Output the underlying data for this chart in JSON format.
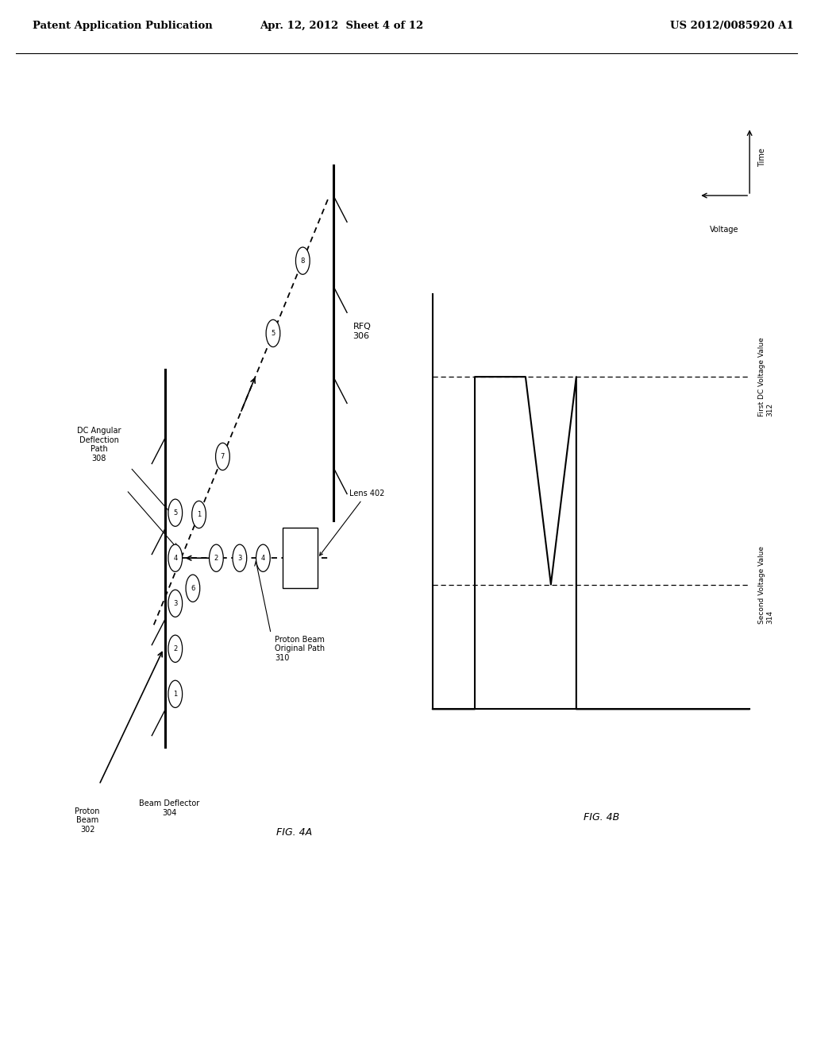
{
  "bg_color": "#ffffff",
  "header_left": "Patent Application Publication",
  "header_mid": "Apr. 12, 2012  Sheet 4 of 12",
  "header_right": "US 2012/0085920 A1",
  "fig4a_label": "FIG. 4A",
  "fig4b_label": "FIG. 4B",
  "proton_beam_label": "Proton\nBeam\n302",
  "beam_deflector_label": "Beam Deflector\n304",
  "dc_angular_label": "DC Angular\nDeflection\nPath\n308",
  "proton_beam_original_label": "Proton Beam\nOriginal Path\n310",
  "lens_label": "Lens 402",
  "rfq_label": "RFQ\n306",
  "first_dc_voltage_label": "First DC Voltage Value\n312",
  "second_voltage_label": "Second Voltage Value\n314",
  "voltage_axis_label": "Voltage",
  "time_axis_label": "Time",
  "dc_numbers_on_diagonal": [
    "1",
    "7",
    "5",
    "8"
  ],
  "dc_numbers_on_horiz": [
    "6",
    "2",
    "3",
    "4"
  ]
}
